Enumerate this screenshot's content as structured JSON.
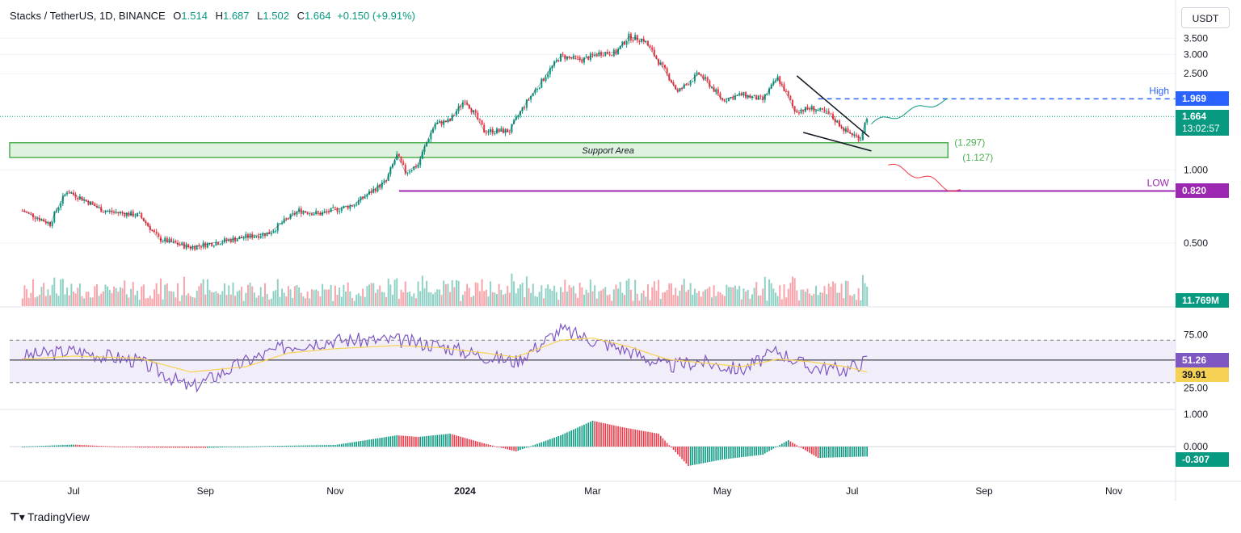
{
  "header": {
    "symbol": "Stacks / TetherUS, 1D, BINANCE",
    "o_label": "O",
    "o_value": "1.514",
    "h_label": "H",
    "h_value": "1.687",
    "l_label": "L",
    "l_value": "1.502",
    "c_label": "C",
    "c_value": "1.664",
    "change": "+0.150 (+9.91%)"
  },
  "currency": "USDT",
  "branding": "TradingView",
  "colors": {
    "up": "#089981",
    "down": "#f23645",
    "rsi": "#7e57c2",
    "rsi_ma": "#f7d154",
    "low": "#9c27b0",
    "high": "#2962ff",
    "support": "#4caf50"
  },
  "chart_data": [
    {
      "type": "line",
      "panel": "price",
      "y_scale": "log",
      "ylim": [
        0.4,
        4.0
      ],
      "y_ticks": [
        "3.500",
        "3.000",
        "2.500",
        "1.000",
        "0.500"
      ],
      "x_ticks": [
        "Jul",
        "Sep",
        "Nov",
        "2024",
        "Mar",
        "May",
        "Jul",
        "Sep",
        "Nov"
      ],
      "x": [
        "2023-06-07",
        "2023-06-20",
        "2023-06-28",
        "2023-07-15",
        "2023-08-01",
        "2023-08-10",
        "2023-08-25",
        "2023-09-15",
        "2023-10-01",
        "2023-10-15",
        "2023-10-25",
        "2023-11-10",
        "2023-11-25",
        "2023-11-30",
        "2023-12-04",
        "2023-12-10",
        "2023-12-18",
        "2023-12-25",
        "2024-01-01",
        "2024-01-10",
        "2024-01-22",
        "2024-02-05",
        "2024-02-15",
        "2024-02-25",
        "2024-03-05",
        "2024-03-12",
        "2024-03-18",
        "2024-03-25",
        "2024-04-01",
        "2024-04-10",
        "2024-04-20",
        "2024-05-01",
        "2024-05-10",
        "2024-05-20",
        "2024-05-27",
        "2024-06-04",
        "2024-06-12",
        "2024-06-20",
        "2024-06-28",
        "2024-07-05",
        "2024-07-08"
      ],
      "close": [
        0.68,
        0.6,
        0.82,
        0.68,
        0.65,
        0.52,
        0.48,
        0.52,
        0.55,
        0.68,
        0.66,
        0.72,
        0.9,
        1.15,
        0.98,
        1.05,
        1.55,
        1.6,
        1.95,
        1.45,
        1.45,
        2.25,
        2.95,
        2.85,
        3.05,
        3.05,
        3.55,
        3.45,
        2.8,
        2.1,
        2.5,
        1.95,
        2.05,
        1.95,
        2.4,
        1.75,
        1.8,
        1.7,
        1.45,
        1.35,
        1.664
      ],
      "support_area": {
        "label": "Support Area",
        "upper": 1.297,
        "lower": 1.127,
        "upper_label": "(1.297)",
        "lower_label": "(1.127)"
      },
      "levels": [
        {
          "name": "High",
          "value": 1.969,
          "label": "1.969"
        },
        {
          "name": "LOW",
          "value": 0.82,
          "label": "0.820"
        }
      ],
      "last_price": {
        "value": 1.664,
        "label": "1.664",
        "countdown": "13:02:57"
      },
      "volume_label": "11.769M"
    },
    {
      "type": "line",
      "panel": "rsi",
      "ylim": [
        10,
        90
      ],
      "y_ticks": [
        "75.00",
        "25.00"
      ],
      "bands": [
        70,
        30
      ],
      "x": [
        "2023-06-07",
        "2023-07-01",
        "2023-08-01",
        "2023-08-25",
        "2023-09-20",
        "2023-10-10",
        "2023-11-01",
        "2023-11-30",
        "2023-12-20",
        "2024-01-10",
        "2024-01-25",
        "2024-02-15",
        "2024-03-01",
        "2024-03-18",
        "2024-04-05",
        "2024-04-20",
        "2024-05-10",
        "2024-05-27",
        "2024-06-10",
        "2024-06-28",
        "2024-07-08"
      ],
      "rsi": [
        55,
        60,
        50,
        25,
        50,
        65,
        70,
        70,
        65,
        55,
        50,
        80,
        70,
        60,
        45,
        50,
        42,
        60,
        45,
        42,
        51.26
      ],
      "ma": [
        52,
        55,
        53,
        40,
        45,
        58,
        62,
        65,
        63,
        58,
        54,
        70,
        72,
        64,
        52,
        49,
        45,
        52,
        50,
        45,
        39.91
      ],
      "rsi_label": "51.26",
      "ma_label": "39.91"
    },
    {
      "type": "bar",
      "panel": "histogram",
      "ylim": [
        -0.8,
        1.0
      ],
      "y_ticks": [
        "1.000",
        "0.000"
      ],
      "x": [
        "2023-06-07",
        "2023-07-01",
        "2023-08-01",
        "2023-09-01",
        "2023-10-01",
        "2023-11-01",
        "2023-11-30",
        "2023-12-10",
        "2023-12-25",
        "2024-01-10",
        "2024-01-25",
        "2024-02-15",
        "2024-03-01",
        "2024-03-15",
        "2024-04-01",
        "2024-04-15",
        "2024-05-01",
        "2024-05-20",
        "2024-06-01",
        "2024-06-15",
        "2024-07-08"
      ],
      "values": [
        0.0,
        0.06,
        -0.03,
        -0.04,
        0.02,
        0.05,
        0.35,
        0.3,
        0.4,
        0.1,
        -0.15,
        0.35,
        0.8,
        0.6,
        0.4,
        -0.6,
        -0.4,
        -0.25,
        0.2,
        -0.35,
        -0.307
      ],
      "value_label": "-0.307"
    }
  ]
}
